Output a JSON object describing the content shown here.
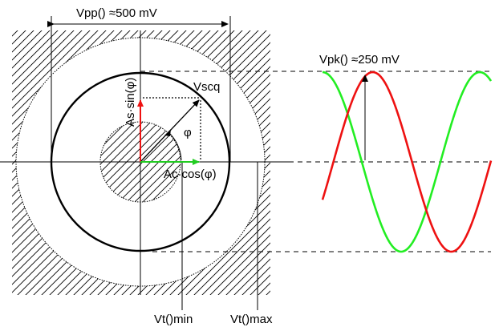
{
  "labels": {
    "vpp": "Vpp() ≈500 mV",
    "vpk": "Vpk() ≈250 mV",
    "vscq": "Vscq",
    "phi": "φ",
    "as_sin": "As·sin(φ)",
    "ac_cos": "Ac·cos(φ)",
    "vt_min": "Vt()min",
    "vt_max": "Vt()max"
  },
  "colors": {
    "sine_red": "#ee1111",
    "sine_green": "#22ee22",
    "vector_red": "#ee1111",
    "vector_green": "#22cc22",
    "ink": "#000000"
  }
}
